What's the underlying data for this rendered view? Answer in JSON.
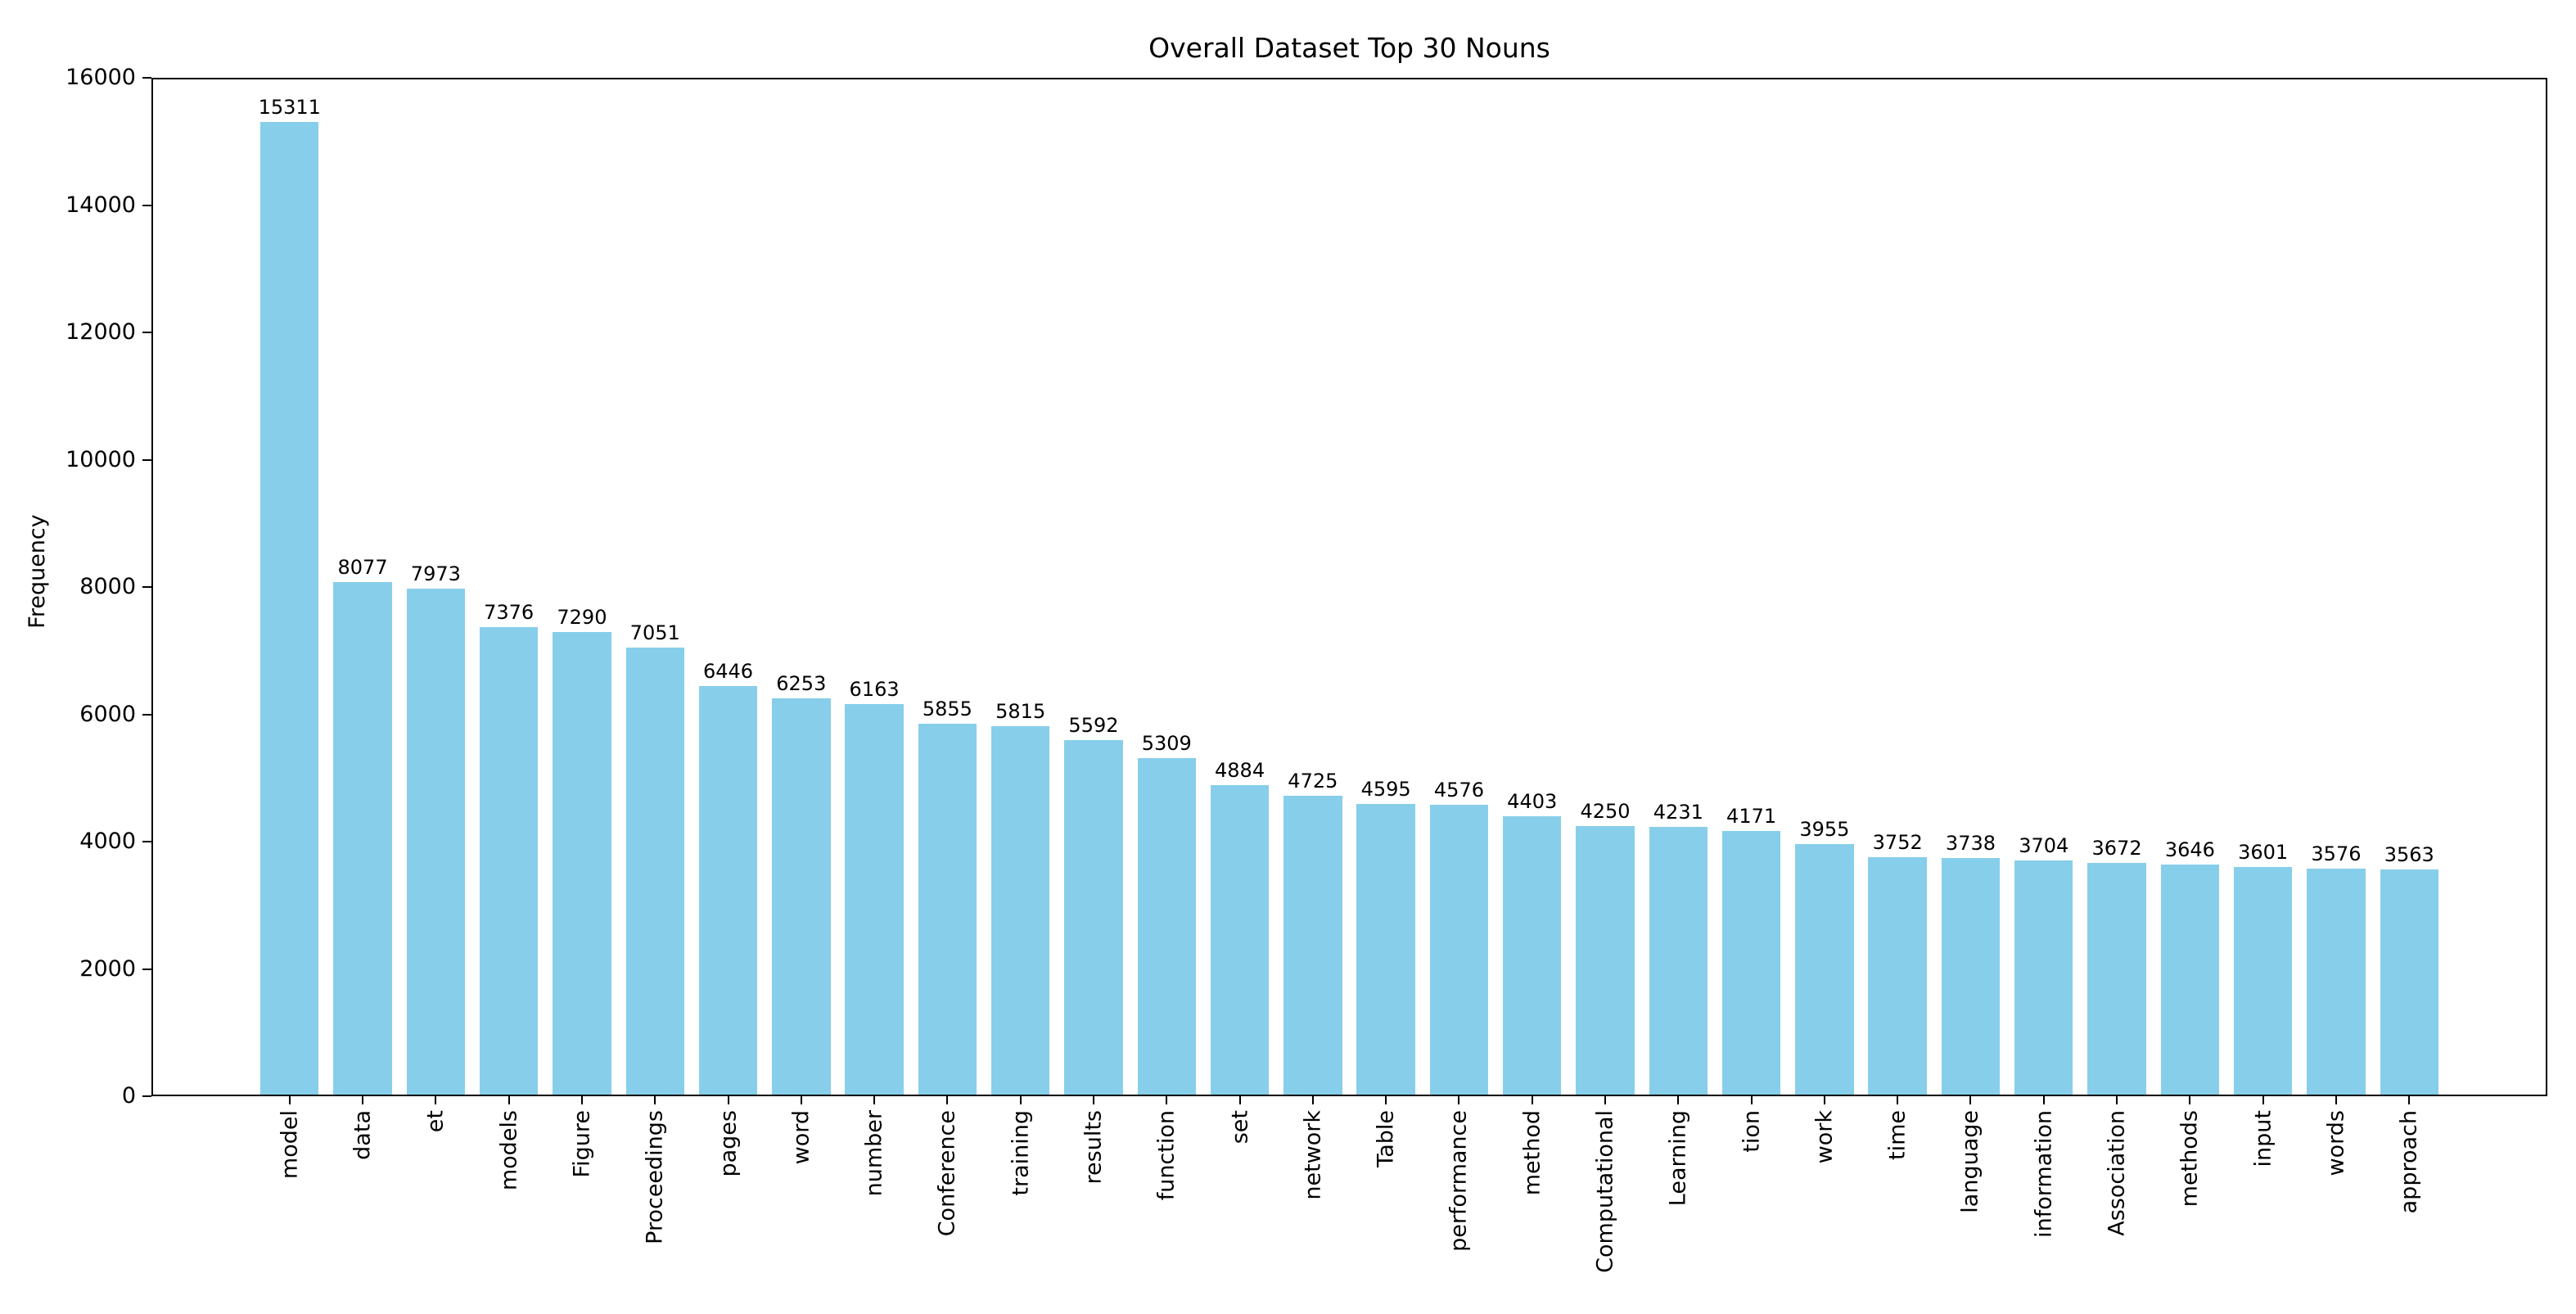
{
  "chart_data": {
    "type": "bar",
    "title": "Overall Dataset Top 30 Nouns",
    "xlabel": "",
    "ylabel": "Frequency",
    "categories": [
      "model",
      "data",
      "et",
      "models",
      "Figure",
      "Proceedings",
      "pages",
      "word",
      "number",
      "Conference",
      "training",
      "results",
      "function",
      "set",
      "network",
      "Table",
      "performance",
      "method",
      "Computational",
      "Learning",
      "tion",
      "work",
      "time",
      "language",
      "information",
      "Association",
      "methods",
      "input",
      "words",
      "approach"
    ],
    "values": [
      15311,
      8077,
      7973,
      7376,
      7290,
      7051,
      6446,
      6253,
      6163,
      5855,
      5815,
      5592,
      5309,
      4884,
      4725,
      4595,
      4576,
      4403,
      4250,
      4231,
      4171,
      3955,
      3752,
      3738,
      3704,
      3672,
      3646,
      3601,
      3576,
      3563
    ],
    "ylim": [
      0,
      16000
    ],
    "yticks": [
      0,
      2000,
      4000,
      6000,
      8000,
      10000,
      12000,
      14000,
      16000
    ],
    "bar_color": "#87CEEB",
    "axis_color": "#000000",
    "grid": false,
    "legend_position": "none",
    "value_labels_shown": true,
    "x_tick_rotation_degrees": 90
  }
}
